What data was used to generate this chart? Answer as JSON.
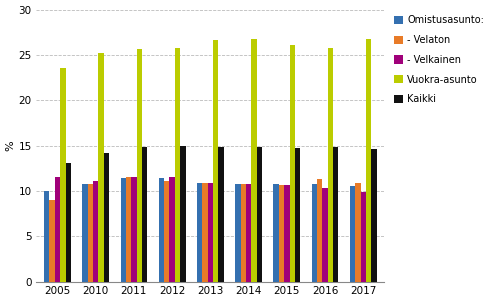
{
  "years": [
    "2005",
    "2010",
    "2011",
    "2012",
    "2013",
    "2014",
    "2015",
    "2016",
    "2017"
  ],
  "series": {
    "Omistusasunto:": [
      10.0,
      10.8,
      11.4,
      11.4,
      10.9,
      10.8,
      10.8,
      10.8,
      10.5
    ],
    "- Velaton": [
      9.0,
      10.8,
      11.5,
      11.1,
      10.9,
      10.8,
      10.6,
      11.3,
      10.9
    ],
    "- Velkainen": [
      11.5,
      11.1,
      11.5,
      11.5,
      10.9,
      10.8,
      10.6,
      10.3,
      9.9
    ],
    "Vuokra-asunto": [
      23.6,
      25.2,
      25.7,
      25.8,
      26.6,
      26.8,
      26.1,
      25.8,
      26.7
    ],
    "Kaikki": [
      13.1,
      14.2,
      14.8,
      15.0,
      14.8,
      14.8,
      14.7,
      14.8,
      14.6
    ]
  },
  "bar_order": [
    "Omistusasunto:",
    "- Velaton",
    "- Velkainen",
    "Vuokra-asunto",
    "Kaikki"
  ],
  "colors": {
    "Omistusasunto:": "#3470B0",
    "- Velaton": "#E87B28",
    "- Velkainen": "#A0007A",
    "Vuokra-asunto": "#BBCC00",
    "Kaikki": "#111111"
  },
  "ylabel": "%",
  "ylim": [
    0,
    30
  ],
  "yticks": [
    0,
    5,
    10,
    15,
    20,
    25,
    30
  ],
  "grid_color": "#BBBBBB",
  "grid_style": "--",
  "background_color": "#FFFFFF",
  "bar_width": 0.14,
  "figsize": [
    4.91,
    3.02
  ],
  "dpi": 100
}
